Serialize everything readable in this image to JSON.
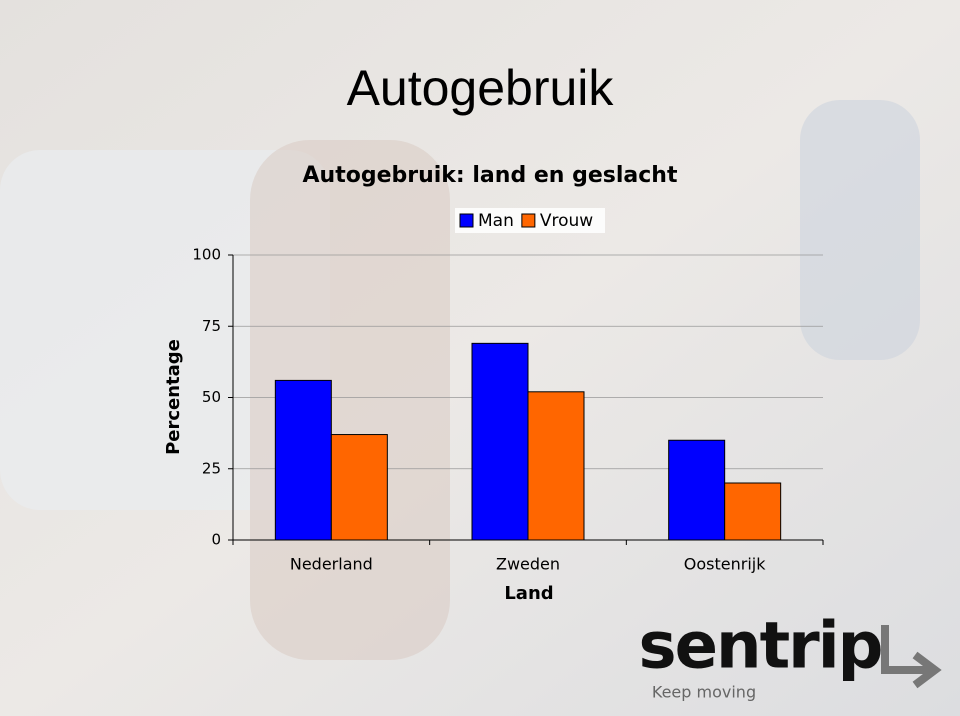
{
  "slide_title": "Autogebruik",
  "chart_data": {
    "type": "bar",
    "title": "Autogebruik: land en geslacht",
    "x_label": "Land",
    "y_label": "Percentage",
    "categories": [
      "Nederland",
      "Zweden",
      "Oostenrijk"
    ],
    "series": [
      {
        "name": "Man",
        "color": "#0000ff",
        "values": [
          56,
          69,
          35
        ]
      },
      {
        "name": "Vrouw",
        "color": "#ff6600",
        "values": [
          37,
          52,
          20
        ]
      }
    ],
    "ylim": [
      0,
      100
    ],
    "yticks": [
      0,
      25,
      50,
      75,
      100
    ],
    "grid": true,
    "legend": "top"
  },
  "logo": {
    "name": "sentrip",
    "tagline": "Keep moving"
  }
}
